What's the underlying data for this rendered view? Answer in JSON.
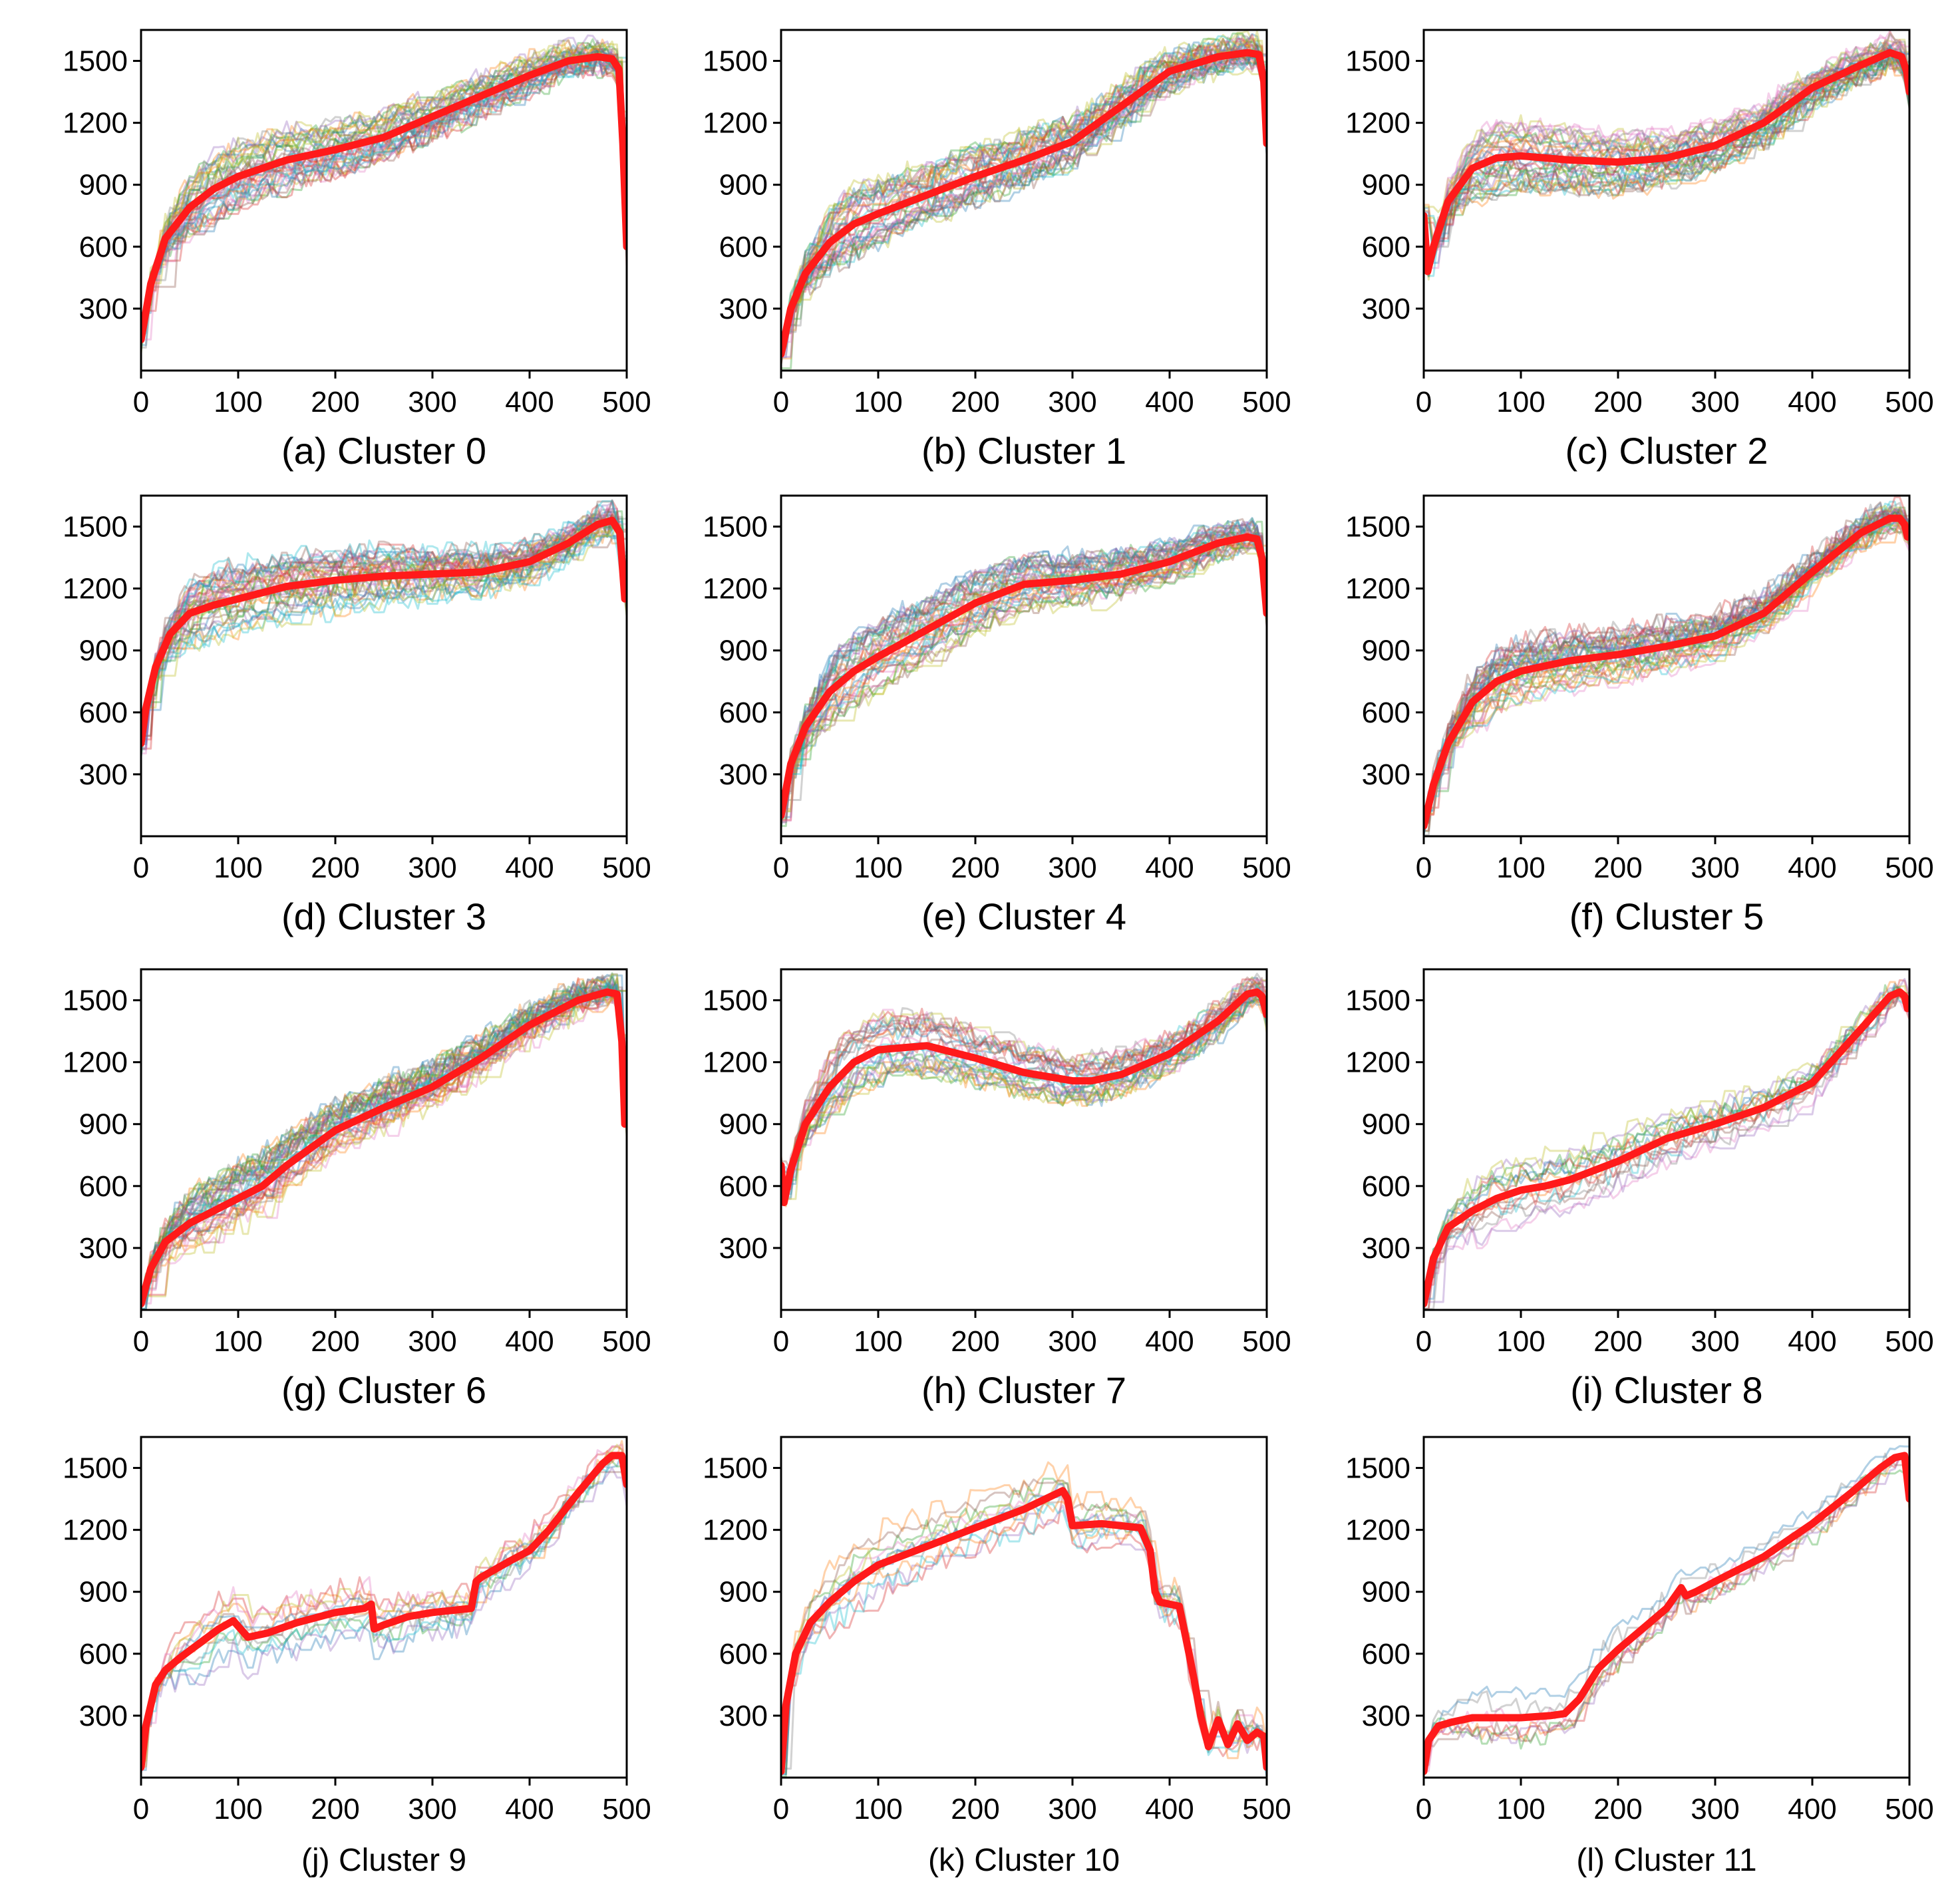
{
  "figure": {
    "description_colors": {
      "mean_line": "#ff1a1a",
      "trace_palette": [
        "#1f77b4",
        "#ff7f0e",
        "#2ca02c",
        "#d62728",
        "#9467bd",
        "#8c564b",
        "#e377c2",
        "#7f7f7f",
        "#bcbd22",
        "#17becf"
      ]
    }
  },
  "chart_data": [
    {
      "type": "line",
      "panel_id": "a",
      "caption": "(a) Cluster 0",
      "xlim": [
        0,
        500
      ],
      "ylim": [
        0,
        1650
      ],
      "xticks": [
        "0",
        "100",
        "200",
        "300",
        "400",
        "500"
      ],
      "yticks": [
        "300",
        "600",
        "900",
        "1200",
        "1500"
      ],
      "series": [
        {
          "name": "cluster mean",
          "x": [
            0,
            10,
            25,
            50,
            75,
            100,
            150,
            200,
            250,
            300,
            350,
            400,
            440,
            470,
            485,
            492,
            496,
            500
          ],
          "y": [
            150,
            420,
            640,
            790,
            880,
            940,
            1020,
            1070,
            1130,
            1230,
            1330,
            1430,
            1500,
            1520,
            1510,
            1460,
            1100,
            600
          ]
        }
      ],
      "trace_count": 40
    },
    {
      "type": "line",
      "panel_id": "b",
      "caption": "(b) Cluster 1",
      "xlim": [
        0,
        500
      ],
      "ylim": [
        0,
        1650
      ],
      "xticks": [
        "0",
        "100",
        "200",
        "300",
        "400",
        "500"
      ],
      "yticks": [
        "300",
        "600",
        "900",
        "1200",
        "1500"
      ],
      "series": [
        {
          "name": "cluster mean",
          "x": [
            0,
            10,
            25,
            50,
            75,
            100,
            150,
            200,
            250,
            300,
            350,
            400,
            450,
            480,
            492,
            497,
            500
          ],
          "y": [
            80,
            300,
            470,
            620,
            710,
            760,
            850,
            940,
            1020,
            1110,
            1280,
            1450,
            1520,
            1540,
            1530,
            1400,
            1100
          ]
        }
      ],
      "trace_count": 40
    },
    {
      "type": "line",
      "panel_id": "c",
      "caption": "(c) Cluster 2",
      "xlim": [
        0,
        500
      ],
      "ylim": [
        0,
        1650
      ],
      "xticks": [
        "0",
        "100",
        "200",
        "300",
        "400",
        "500"
      ],
      "yticks": [
        "300",
        "600",
        "900",
        "1200",
        "1500"
      ],
      "series": [
        {
          "name": "cluster mean",
          "x": [
            0,
            4,
            10,
            25,
            50,
            75,
            100,
            150,
            200,
            250,
            300,
            350,
            400,
            450,
            480,
            492,
            497,
            500
          ],
          "y": [
            750,
            480,
            600,
            820,
            980,
            1030,
            1040,
            1020,
            1010,
            1030,
            1090,
            1200,
            1370,
            1480,
            1540,
            1520,
            1450,
            1350
          ]
        }
      ],
      "trace_count": 40
    },
    {
      "type": "line",
      "panel_id": "d",
      "caption": "(d) Cluster 3",
      "xlim": [
        0,
        500
      ],
      "ylim": [
        0,
        1650
      ],
      "xticks": [
        "0",
        "100",
        "200",
        "300",
        "400",
        "500"
      ],
      "yticks": [
        "300",
        "600",
        "900",
        "1200",
        "1500"
      ],
      "series": [
        {
          "name": "cluster mean",
          "x": [
            0,
            5,
            15,
            30,
            50,
            75,
            100,
            150,
            200,
            250,
            300,
            350,
            400,
            440,
            470,
            485,
            493,
            498
          ],
          "y": [
            450,
            620,
            820,
            980,
            1080,
            1120,
            1150,
            1210,
            1240,
            1260,
            1270,
            1280,
            1330,
            1420,
            1510,
            1530,
            1470,
            1150
          ]
        }
      ],
      "trace_count": 40
    },
    {
      "type": "line",
      "panel_id": "e",
      "caption": "(e) Cluster 4",
      "xlim": [
        0,
        500
      ],
      "ylim": [
        0,
        1650
      ],
      "xticks": [
        "0",
        "100",
        "200",
        "300",
        "400",
        "500"
      ],
      "yticks": [
        "300",
        "600",
        "900",
        "1200",
        "1500"
      ],
      "series": [
        {
          "name": "cluster mean",
          "x": [
            0,
            10,
            25,
            50,
            75,
            100,
            150,
            200,
            250,
            300,
            350,
            400,
            450,
            480,
            490,
            495,
            500
          ],
          "y": [
            100,
            350,
            530,
            700,
            800,
            870,
            1000,
            1130,
            1220,
            1240,
            1270,
            1330,
            1420,
            1450,
            1440,
            1350,
            1080
          ]
        }
      ],
      "trace_count": 40
    },
    {
      "type": "line",
      "panel_id": "f",
      "caption": "(f) Cluster 5",
      "xlim": [
        0,
        500
      ],
      "ylim": [
        0,
        1650
      ],
      "xticks": [
        "0",
        "100",
        "200",
        "300",
        "400",
        "500"
      ],
      "yticks": [
        "300",
        "600",
        "900",
        "1200",
        "1500"
      ],
      "series": [
        {
          "name": "cluster mean",
          "x": [
            0,
            10,
            25,
            50,
            75,
            100,
            150,
            200,
            250,
            300,
            350,
            400,
            450,
            480,
            490,
            495,
            498
          ],
          "y": [
            50,
            250,
            450,
            650,
            750,
            800,
            850,
            880,
            920,
            970,
            1080,
            1280,
            1470,
            1540,
            1540,
            1510,
            1450
          ]
        }
      ],
      "trace_count": 40
    },
    {
      "type": "line",
      "panel_id": "g",
      "caption": "(g) Cluster 6",
      "xlim": [
        0,
        500
      ],
      "ylim": [
        0,
        1650
      ],
      "xticks": [
        "0",
        "100",
        "200",
        "300",
        "400",
        "500"
      ],
      "yticks": [
        "300",
        "600",
        "900",
        "1200",
        "1500"
      ],
      "series": [
        {
          "name": "cluster mean",
          "x": [
            0,
            10,
            25,
            50,
            75,
            100,
            125,
            150,
            200,
            250,
            300,
            350,
            400,
            450,
            480,
            490,
            495,
            498
          ],
          "y": [
            30,
            200,
            330,
            420,
            480,
            540,
            600,
            700,
            870,
            980,
            1080,
            1220,
            1380,
            1500,
            1540,
            1530,
            1300,
            900
          ]
        }
      ],
      "trace_count": 40
    },
    {
      "type": "line",
      "panel_id": "h",
      "caption": "(h) Cluster 7",
      "xlim": [
        0,
        500
      ],
      "ylim": [
        0,
        1650
      ],
      "xticks": [
        "0",
        "100",
        "200",
        "300",
        "400",
        "500"
      ],
      "yticks": [
        "300",
        "600",
        "900",
        "1200",
        "1500"
      ],
      "series": [
        {
          "name": "cluster mean",
          "x": [
            0,
            3,
            10,
            25,
            50,
            75,
            100,
            150,
            200,
            250,
            300,
            320,
            350,
            400,
            450,
            480,
            490,
            495,
            500
          ],
          "y": [
            700,
            520,
            680,
            900,
            1080,
            1200,
            1260,
            1280,
            1220,
            1150,
            1110,
            1110,
            1140,
            1240,
            1400,
            1530,
            1540,
            1520,
            1430
          ]
        }
      ],
      "trace_count": 30
    },
    {
      "type": "line",
      "panel_id": "i",
      "caption": "(i) Cluster 8",
      "xlim": [
        0,
        500
      ],
      "ylim": [
        0,
        1650
      ],
      "xticks": [
        "0",
        "100",
        "200",
        "300",
        "400",
        "500"
      ],
      "yticks": [
        "300",
        "600",
        "900",
        "1200",
        "1500"
      ],
      "series": [
        {
          "name": "cluster mean",
          "x": [
            0,
            10,
            25,
            50,
            75,
            100,
            125,
            150,
            200,
            250,
            300,
            350,
            400,
            450,
            480,
            490,
            495,
            498
          ],
          "y": [
            30,
            250,
            400,
            480,
            540,
            580,
            600,
            630,
            720,
            830,
            900,
            980,
            1100,
            1360,
            1520,
            1540,
            1520,
            1460
          ]
        }
      ],
      "trace_count": 16
    },
    {
      "type": "line",
      "panel_id": "j",
      "caption": "(j) Cluster 9",
      "xlim": [
        0,
        500
      ],
      "ylim": [
        0,
        1650
      ],
      "xticks": [
        "0",
        "100",
        "200",
        "300",
        "400",
        "500"
      ],
      "yticks": [
        "300",
        "600",
        "900",
        "1200",
        "1500"
      ],
      "series": [
        {
          "name": "cluster mean",
          "x": [
            0,
            5,
            15,
            25,
            40,
            60,
            80,
            95,
            110,
            130,
            160,
            200,
            230,
            237,
            240,
            250,
            275,
            300,
            340,
            345,
            350,
            380,
            400,
            420,
            450,
            475,
            485,
            495,
            500
          ],
          "y": [
            50,
            250,
            450,
            520,
            580,
            650,
            720,
            760,
            680,
            700,
            750,
            800,
            820,
            840,
            720,
            740,
            780,
            800,
            820,
            950,
            970,
            1050,
            1100,
            1200,
            1380,
            1520,
            1560,
            1560,
            1420
          ]
        }
      ],
      "trace_count": 12
    },
    {
      "type": "line",
      "panel_id": "k",
      "caption": "(k) Cluster 10",
      "xlim": [
        0,
        500
      ],
      "ylim": [
        0,
        1650
      ],
      "xticks": [
        "0",
        "100",
        "200",
        "300",
        "400",
        "500"
      ],
      "yticks": [
        "300",
        "600",
        "900",
        "1200",
        "1500"
      ],
      "series": [
        {
          "name": "cluster mean",
          "x": [
            0,
            5,
            15,
            30,
            50,
            75,
            100,
            150,
            200,
            250,
            290,
            295,
            300,
            330,
            370,
            380,
            385,
            390,
            410,
            420,
            425,
            432,
            440,
            450,
            460,
            470,
            480,
            490,
            497,
            500
          ],
          "y": [
            30,
            350,
            600,
            750,
            850,
            950,
            1030,
            1120,
            1210,
            1300,
            1390,
            1350,
            1220,
            1230,
            1210,
            1100,
            900,
            850,
            830,
            600,
            480,
            300,
            150,
            280,
            160,
            260,
            180,
            220,
            200,
            50
          ]
        }
      ],
      "trace_count": 12
    },
    {
      "type": "line",
      "panel_id": "l",
      "caption": "(l) Cluster 11",
      "xlim": [
        0,
        500
      ],
      "ylim": [
        0,
        1650
      ],
      "xticks": [
        "0",
        "100",
        "200",
        "300",
        "400",
        "500"
      ],
      "yticks": [
        "300",
        "600",
        "900",
        "1200",
        "1500"
      ],
      "series": [
        {
          "name": "cluster mean",
          "x": [
            0,
            5,
            15,
            30,
            50,
            80,
            100,
            130,
            145,
            160,
            180,
            200,
            230,
            250,
            265,
            270,
            280,
            300,
            350,
            400,
            440,
            470,
            485,
            495,
            500
          ],
          "y": [
            30,
            180,
            250,
            270,
            290,
            290,
            290,
            300,
            310,
            380,
            530,
            620,
            740,
            820,
            920,
            880,
            900,
            950,
            1070,
            1230,
            1380,
            1500,
            1550,
            1560,
            1350
          ]
        }
      ],
      "trace_count": 8
    }
  ]
}
